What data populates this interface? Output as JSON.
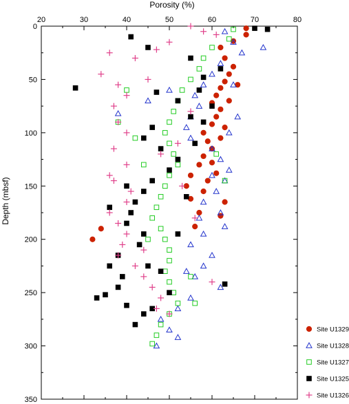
{
  "chart_data": {
    "type": "scatter",
    "title": "",
    "xlabel": "Porosity (%)",
    "ylabel": "Depth (mbsf)",
    "xlim": [
      20,
      80
    ],
    "ylim": [
      0,
      350
    ],
    "y_inverted": true,
    "x_axis_position": "top",
    "x_ticks": [
      20,
      30,
      40,
      50,
      60,
      70,
      80
    ],
    "y_ticks": [
      0,
      50,
      100,
      150,
      200,
      250,
      300,
      350
    ],
    "grid": false,
    "legend_position": "bottom-right",
    "series": [
      {
        "name": "Site U1329",
        "marker": "circle-filled",
        "color": "#cc2200",
        "points": [
          [
            68,
            2
          ],
          [
            68,
            8
          ],
          [
            62,
            20
          ],
          [
            63,
            30
          ],
          [
            65,
            38
          ],
          [
            64,
            45
          ],
          [
            63,
            52
          ],
          [
            62,
            58
          ],
          [
            61,
            65
          ],
          [
            60,
            72
          ],
          [
            62,
            78
          ],
          [
            61,
            85
          ],
          [
            60,
            92
          ],
          [
            58,
            100
          ],
          [
            59,
            108
          ],
          [
            60,
            115
          ],
          [
            58,
            122
          ],
          [
            57,
            130
          ],
          [
            55,
            140
          ],
          [
            54,
            150
          ],
          [
            55,
            162
          ],
          [
            57,
            175
          ],
          [
            56,
            188
          ],
          [
            34,
            190
          ],
          [
            32,
            200
          ],
          [
            65,
            14
          ],
          [
            66,
            55
          ],
          [
            64,
            70
          ],
          [
            63,
            95
          ],
          [
            62,
            105
          ],
          [
            60,
            128
          ],
          [
            61,
            138
          ],
          [
            59,
            145
          ],
          [
            58,
            155
          ],
          [
            63,
            165
          ],
          [
            62,
            178
          ]
        ]
      },
      {
        "name": "Site U1328",
        "marker": "triangle-open",
        "color": "#2233cc",
        "points": [
          [
            63,
            5
          ],
          [
            65,
            15
          ],
          [
            67,
            25
          ],
          [
            72,
            20
          ],
          [
            62,
            35
          ],
          [
            60,
            45
          ],
          [
            58,
            55
          ],
          [
            56,
            65
          ],
          [
            57,
            75
          ],
          [
            55,
            85
          ],
          [
            54,
            95
          ],
          [
            55,
            105
          ],
          [
            60,
            115
          ],
          [
            62,
            125
          ],
          [
            64,
            135
          ],
          [
            63,
            145
          ],
          [
            61,
            155
          ],
          [
            58,
            165
          ],
          [
            62,
            175
          ],
          [
            63,
            188
          ],
          [
            58,
            195
          ],
          [
            55,
            205
          ],
          [
            60,
            215
          ],
          [
            58,
            225
          ],
          [
            56,
            235
          ],
          [
            62,
            245
          ],
          [
            55,
            255
          ],
          [
            52,
            265
          ],
          [
            48,
            275
          ],
          [
            50,
            285
          ],
          [
            52,
            292
          ],
          [
            38,
            82
          ],
          [
            45,
            70
          ],
          [
            50,
            60
          ],
          [
            65,
            55
          ],
          [
            66,
            85
          ],
          [
            64,
            100
          ],
          [
            60,
            140
          ],
          [
            57,
            180
          ],
          [
            54,
            230
          ],
          [
            47,
            300
          ]
        ]
      },
      {
        "name": "Site U1327",
        "marker": "square-open",
        "color": "#22cc22",
        "points": [
          [
            65,
            3
          ],
          [
            64,
            12
          ],
          [
            60,
            20
          ],
          [
            58,
            30
          ],
          [
            57,
            40
          ],
          [
            55,
            50
          ],
          [
            53,
            60
          ],
          [
            52,
            70
          ],
          [
            51,
            80
          ],
          [
            50,
            90
          ],
          [
            49,
            100
          ],
          [
            50,
            110
          ],
          [
            51,
            120
          ],
          [
            52,
            130
          ],
          [
            50,
            140
          ],
          [
            49,
            150
          ],
          [
            48,
            160
          ],
          [
            47,
            170
          ],
          [
            46,
            180
          ],
          [
            48,
            190
          ],
          [
            49,
            200
          ],
          [
            50,
            210
          ],
          [
            50,
            220
          ],
          [
            49,
            230
          ],
          [
            50,
            240
          ],
          [
            51,
            250
          ],
          [
            52,
            260
          ],
          [
            50,
            270
          ],
          [
            48,
            280
          ],
          [
            47,
            290
          ],
          [
            46,
            298
          ],
          [
            40,
            60
          ],
          [
            38,
            90
          ],
          [
            42,
            105
          ],
          [
            44,
            130
          ],
          [
            63,
            145
          ],
          [
            61,
            120
          ],
          [
            45,
            200
          ],
          [
            55,
            235
          ],
          [
            56,
            260
          ]
        ]
      },
      {
        "name": "Site U1325",
        "marker": "square-filled",
        "color": "#000000",
        "points": [
          [
            70,
            2
          ],
          [
            73,
            3
          ],
          [
            41,
            10
          ],
          [
            45,
            20
          ],
          [
            55,
            30
          ],
          [
            62,
            40
          ],
          [
            58,
            48
          ],
          [
            28,
            58
          ],
          [
            47,
            62
          ],
          [
            52,
            70
          ],
          [
            60,
            75
          ],
          [
            55,
            85
          ],
          [
            46,
            95
          ],
          [
            44,
            105
          ],
          [
            48,
            115
          ],
          [
            52,
            125
          ],
          [
            50,
            135
          ],
          [
            46,
            145
          ],
          [
            44,
            155
          ],
          [
            42,
            165
          ],
          [
            41,
            175
          ],
          [
            40,
            185
          ],
          [
            44,
            195
          ],
          [
            43,
            205
          ],
          [
            38,
            215
          ],
          [
            36,
            225
          ],
          [
            39,
            235
          ],
          [
            38,
            245
          ],
          [
            35,
            252
          ],
          [
            33,
            255
          ],
          [
            40,
            262
          ],
          [
            44,
            270
          ],
          [
            42,
            280
          ],
          [
            63,
            242
          ],
          [
            48,
            230
          ],
          [
            50,
            250
          ],
          [
            46,
            265
          ],
          [
            52,
            195
          ],
          [
            54,
            160
          ],
          [
            56,
            110
          ],
          [
            40,
            150
          ],
          [
            36,
            170
          ],
          [
            45,
            225
          ],
          [
            58,
            90
          ],
          [
            57,
            60
          ]
        ]
      },
      {
        "name": "Site U1326",
        "marker": "plus",
        "color": "#e0408a",
        "points": [
          [
            55,
            0
          ],
          [
            58,
            5
          ],
          [
            61,
            8
          ],
          [
            50,
            15
          ],
          [
            47,
            22
          ],
          [
            36,
            25
          ],
          [
            42,
            30
          ],
          [
            34,
            45
          ],
          [
            38,
            55
          ],
          [
            40,
            65
          ],
          [
            37,
            75
          ],
          [
            38,
            90
          ],
          [
            40,
            100
          ],
          [
            37,
            115
          ],
          [
            40,
            130
          ],
          [
            37,
            145
          ],
          [
            41,
            155
          ],
          [
            40,
            165
          ],
          [
            36,
            175
          ],
          [
            38,
            185
          ],
          [
            40,
            195
          ],
          [
            39,
            205
          ],
          [
            38,
            215
          ],
          [
            42,
            225
          ],
          [
            44,
            235
          ],
          [
            46,
            245
          ],
          [
            48,
            255
          ],
          [
            47,
            265
          ],
          [
            60,
            240
          ],
          [
            52,
            110
          ],
          [
            55,
            80
          ],
          [
            45,
            50
          ],
          [
            53,
            150
          ],
          [
            56,
            180
          ],
          [
            44,
            210
          ],
          [
            50,
            270
          ],
          [
            48,
            120
          ],
          [
            36,
            140
          ]
        ]
      }
    ]
  }
}
